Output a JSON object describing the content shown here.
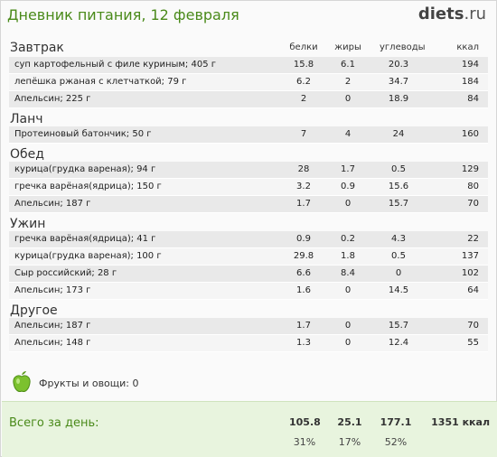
{
  "header": {
    "title": "Дневник питания, 12 февраля",
    "logo_main": "diets",
    "logo_tld": ".ru"
  },
  "columns": {
    "protein": "белки",
    "fat": "жиры",
    "carbs": "углеводы",
    "kcal": "ккал"
  },
  "sections": [
    {
      "title": "Завтрак",
      "items": [
        {
          "name": "суп картофельный с филе куриным; 405 г",
          "protein": "15.8",
          "fat": "6.1",
          "carbs": "20.3",
          "kcal": "194"
        },
        {
          "name": "лепёшка ржаная с клетчаткой; 79 г",
          "protein": "6.2",
          "fat": "2",
          "carbs": "34.7",
          "kcal": "184"
        },
        {
          "name": "Апельсин; 225 г",
          "protein": "2",
          "fat": "0",
          "carbs": "18.9",
          "kcal": "84"
        }
      ]
    },
    {
      "title": "Ланч",
      "items": [
        {
          "name": "Протеиновый батончик; 50 г",
          "protein": "7",
          "fat": "4",
          "carbs": "24",
          "kcal": "160"
        }
      ]
    },
    {
      "title": "Обед",
      "items": [
        {
          "name": "курица(грудка вареная); 94 г",
          "protein": "28",
          "fat": "1.7",
          "carbs": "0.5",
          "kcal": "129"
        },
        {
          "name": "гречка варёная(ядрица); 150 г",
          "protein": "3.2",
          "fat": "0.9",
          "carbs": "15.6",
          "kcal": "80"
        },
        {
          "name": "Апельсин; 187 г",
          "protein": "1.7",
          "fat": "0",
          "carbs": "15.7",
          "kcal": "70"
        }
      ]
    },
    {
      "title": "Ужин",
      "items": [
        {
          "name": "гречка варёная(ядрица); 41 г",
          "protein": "0.9",
          "fat": "0.2",
          "carbs": "4.3",
          "kcal": "22"
        },
        {
          "name": "курица(грудка вареная); 100 г",
          "protein": "29.8",
          "fat": "1.8",
          "carbs": "0.5",
          "kcal": "137"
        },
        {
          "name": "Сыр российский; 28 г",
          "protein": "6.6",
          "fat": "8.4",
          "carbs": "0",
          "kcal": "102"
        },
        {
          "name": "Апельсин; 173 г",
          "protein": "1.6",
          "fat": "0",
          "carbs": "14.5",
          "kcal": "64"
        }
      ]
    },
    {
      "title": "Другое",
      "items": [
        {
          "name": "Апельсин; 187 г",
          "protein": "1.7",
          "fat": "0",
          "carbs": "15.7",
          "kcal": "70"
        },
        {
          "name": "Апельсин; 148 г",
          "protein": "1.3",
          "fat": "0",
          "carbs": "12.4",
          "kcal": "55"
        }
      ]
    }
  ],
  "fruits": {
    "label": "Фрукты и овощи: 0",
    "icon": "green-apple-icon"
  },
  "total": {
    "label": "Всего за день:",
    "protein": "105.8",
    "fat": "25.1",
    "carbs": "177.1",
    "kcal": "1351 ккал",
    "protein_pct": "31%",
    "fat_pct": "17%",
    "carbs_pct": "52%"
  },
  "colors": {
    "title_green": "#4a8a1a",
    "total_bg": "#e8f4de",
    "row_odd": "#e9e9e9",
    "row_even": "#f5f5f5"
  }
}
